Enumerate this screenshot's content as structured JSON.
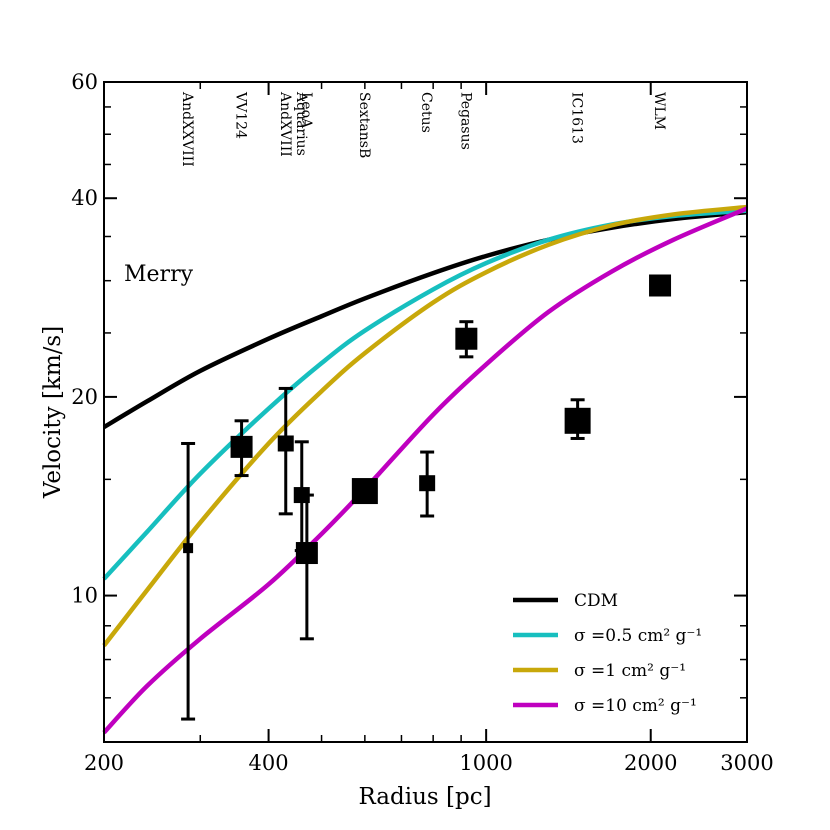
{
  "chart_data": {
    "type": "line",
    "xlabel": "Radius [pc]",
    "ylabel": "Velocity [km/s]",
    "x_scale": "log",
    "y_scale": "log",
    "xlim": [
      200,
      3000
    ],
    "ylim": [
      6,
      60
    ],
    "x_ticks": [
      200,
      400,
      1000,
      2000,
      3000
    ],
    "x_tick_labels": [
      "200",
      "400",
      "1000",
      "2000",
      "3000"
    ],
    "y_ticks": [
      10,
      20,
      40,
      60
    ],
    "y_tick_labels": [
      "10",
      "20",
      "40",
      "60"
    ],
    "annotation": "Merry",
    "legend_position": "lower-right",
    "series": [
      {
        "name": "CDM",
        "color": "#000000",
        "x": [
          200,
          240,
          300,
          400,
          500,
          600,
          800,
          1000,
          1300,
          1700,
          2200,
          3000
        ],
        "y": [
          18,
          19.7,
          21.9,
          24.5,
          26.5,
          28.2,
          30.8,
          32.7,
          34.6,
          36.1,
          37.2,
          38.1
        ]
      },
      {
        "name": "σ =0.5 cm² g⁻¹",
        "color": "#17bfbf",
        "x": [
          200,
          240,
          300,
          400,
          500,
          600,
          800,
          1000,
          1300,
          1700,
          2200,
          3000
        ],
        "y": [
          10.6,
          12.5,
          15.3,
          19.2,
          22.5,
          25.2,
          29.1,
          31.9,
          34.6,
          36.5,
          37.6,
          38.3
        ]
      },
      {
        "name": "σ =1 cm² g⁻¹",
        "color": "#c8a80a",
        "x": [
          200,
          240,
          300,
          400,
          500,
          600,
          800,
          1000,
          1300,
          1700,
          2200,
          3000
        ],
        "y": [
          8.4,
          10.2,
          12.9,
          17.0,
          20.4,
          23.3,
          27.8,
          30.9,
          34.0,
          36.4,
          37.8,
          38.8
        ]
      },
      {
        "name": "σ =10 cm² g⁻¹",
        "color": "#bf00bf",
        "x": [
          200,
          240,
          300,
          400,
          500,
          600,
          800,
          1000,
          1300,
          1700,
          2200,
          3000
        ],
        "y": [
          6.2,
          7.3,
          8.6,
          10.4,
          12.4,
          14.5,
          18.8,
          22.4,
          26.9,
          31.0,
          34.6,
          38.6
        ]
      }
    ],
    "data_points": [
      {
        "galaxy": "AndXXVIII",
        "x": 285,
        "y": 11.8,
        "y_err_low": 6.5,
        "y_err_high": 17.0,
        "marker_size": "small"
      },
      {
        "galaxy": "VV124",
        "x": 357,
        "y": 16.8,
        "y_err_low": 15.2,
        "y_err_high": 18.4,
        "marker_size": "large"
      },
      {
        "galaxy": "AndXVIII",
        "x": 430,
        "y": 17.0,
        "y_err_low": 13.3,
        "y_err_high": 20.6,
        "marker_size": "medium"
      },
      {
        "galaxy": "Aquarius",
        "x": 460,
        "y": 14.2,
        "y_err_low": 11.7,
        "y_err_high": 17.1,
        "marker_size": "medium"
      },
      {
        "galaxy": "LeoA",
        "x": 470,
        "y": 11.6,
        "y_err_low": 8.6,
        "y_err_high": 14.2,
        "marker_size": "large"
      },
      {
        "galaxy": "SextansB",
        "x": 600,
        "y": 14.4,
        "y_err_low": 14.4,
        "y_err_high": 14.4,
        "marker_size": "xlarge"
      },
      {
        "galaxy": "Cetus",
        "x": 780,
        "y": 14.8,
        "y_err_low": 13.2,
        "y_err_high": 16.5,
        "marker_size": "medium"
      },
      {
        "galaxy": "Pegasus",
        "x": 920,
        "y": 24.5,
        "y_err_low": 23.0,
        "y_err_high": 26.0,
        "marker_size": "large"
      },
      {
        "galaxy": "IC1613",
        "x": 1470,
        "y": 18.4,
        "y_err_low": 17.3,
        "y_err_high": 19.8,
        "marker_size": "xlarge"
      },
      {
        "galaxy": "WLM",
        "x": 2080,
        "y": 29.5,
        "y_err_low": 29.5,
        "y_err_high": 29.5,
        "marker_size": "large"
      }
    ]
  }
}
